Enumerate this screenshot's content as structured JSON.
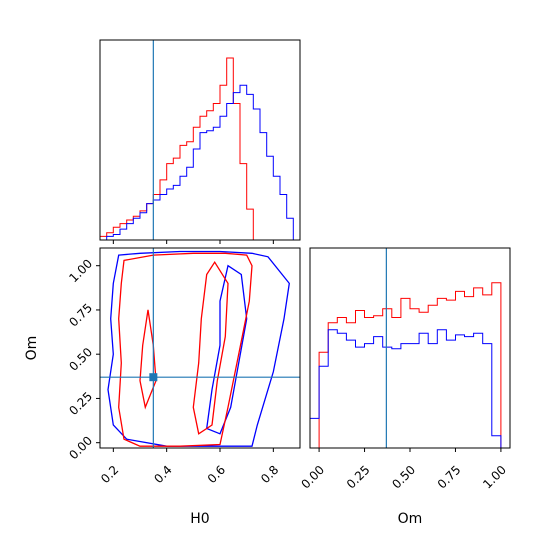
{
  "chart_data": {
    "type": "corner",
    "parameters": [
      "H0",
      "Om"
    ],
    "truth": {
      "H0": 0.35,
      "Om": 0.37
    },
    "colors": {
      "red": "#ff0000",
      "blue": "#0000ff",
      "truth": "#1f77b4"
    },
    "h0_hist": {
      "type": "histogram",
      "param": "H0",
      "xlim": [
        0.15,
        0.9
      ],
      "bin_edges": [
        0.15,
        0.175,
        0.2,
        0.225,
        0.25,
        0.275,
        0.3,
        0.325,
        0.35,
        0.375,
        0.4,
        0.425,
        0.45,
        0.475,
        0.5,
        0.525,
        0.55,
        0.575,
        0.6,
        0.625,
        0.65,
        0.675,
        0.7,
        0.725,
        0.75,
        0.775,
        0.8,
        0.825,
        0.85,
        0.875,
        0.9
      ],
      "series": [
        {
          "color": "red",
          "values": [
            0.02,
            0.04,
            0.07,
            0.09,
            0.11,
            0.13,
            0.16,
            0.2,
            0.25,
            0.33,
            0.42,
            0.45,
            0.52,
            0.54,
            0.62,
            0.68,
            0.71,
            0.75,
            0.85,
            1.0,
            0.75,
            0.42,
            0.17,
            0.0,
            0.0,
            0.0,
            0.0,
            0.0,
            0.0,
            0.0
          ]
        },
        {
          "color": "blue",
          "values": [
            0.0,
            0.02,
            0.03,
            0.06,
            0.09,
            0.12,
            0.15,
            0.2,
            0.22,
            0.25,
            0.28,
            0.3,
            0.35,
            0.4,
            0.5,
            0.59,
            0.6,
            0.62,
            0.68,
            0.75,
            0.81,
            0.85,
            0.8,
            0.72,
            0.59,
            0.46,
            0.35,
            0.25,
            0.12,
            0.0
          ]
        }
      ]
    },
    "om_hist": {
      "type": "histogram",
      "param": "Om",
      "xlim": [
        -0.05,
        1.05
      ],
      "xticks": [
        "0.00",
        "0.25",
        "0.50",
        "0.75",
        "1.00"
      ],
      "xtick_values": [
        0.0,
        0.25,
        0.5,
        0.75,
        1.0
      ],
      "xlabel": "Om",
      "bin_edges": [
        -0.05,
        0.0,
        0.05,
        0.1,
        0.15,
        0.2,
        0.25,
        0.3,
        0.35,
        0.4,
        0.45,
        0.5,
        0.55,
        0.6,
        0.65,
        0.7,
        0.75,
        0.8,
        0.85,
        0.9,
        0.95,
        1.0,
        1.05
      ],
      "series": [
        {
          "color": "red",
          "values": [
            0.0,
            0.55,
            0.72,
            0.75,
            0.72,
            0.79,
            0.75,
            0.76,
            0.8,
            0.75,
            0.86,
            0.8,
            0.78,
            0.82,
            0.86,
            0.85,
            0.9,
            0.87,
            0.92,
            0.88,
            0.95,
            0.0
          ]
        },
        {
          "color": "blue",
          "values": [
            0.17,
            0.47,
            0.68,
            0.66,
            0.62,
            0.58,
            0.6,
            0.64,
            0.58,
            0.57,
            0.6,
            0.6,
            0.66,
            0.6,
            0.68,
            0.62,
            0.65,
            0.64,
            0.66,
            0.6,
            0.07,
            0.0
          ]
        }
      ]
    },
    "joint": {
      "type": "contour",
      "x_param": "H0",
      "y_param": "Om",
      "xlim": [
        0.15,
        0.9
      ],
      "ylim": [
        -0.03,
        1.1
      ],
      "xticks": [
        "0.2",
        "0.4",
        "0.6",
        "0.8"
      ],
      "xtick_values": [
        0.2,
        0.4,
        0.6,
        0.8
      ],
      "yticks": [
        "0.00",
        "0.25",
        "0.50",
        "0.75",
        "1.00"
      ],
      "ytick_values": [
        0.0,
        0.25,
        0.5,
        0.75,
        1.0
      ],
      "xlabel": "H0",
      "ylabel": "Om",
      "contours": [
        {
          "color": "blue",
          "level": "outer",
          "points": [
            [
              0.22,
              1.06
            ],
            [
              0.3,
              1.07
            ],
            [
              0.45,
              1.08
            ],
            [
              0.6,
              1.08
            ],
            [
              0.72,
              1.07
            ],
            [
              0.78,
              1.05
            ],
            [
              0.86,
              0.9
            ],
            [
              0.84,
              0.7
            ],
            [
              0.8,
              0.4
            ],
            [
              0.74,
              0.1
            ],
            [
              0.72,
              -0.02
            ],
            [
              0.6,
              -0.02
            ],
            [
              0.4,
              -0.02
            ],
            [
              0.25,
              0.02
            ],
            [
              0.2,
              0.1
            ],
            [
              0.18,
              0.3
            ],
            [
              0.2,
              0.5
            ],
            [
              0.19,
              0.7
            ],
            [
              0.2,
              0.9
            ],
            [
              0.22,
              1.06
            ]
          ]
        },
        {
          "color": "blue",
          "level": "inner",
          "points": [
            [
              0.63,
              1.0
            ],
            [
              0.68,
              0.95
            ],
            [
              0.7,
              0.7
            ],
            [
              0.67,
              0.45
            ],
            [
              0.64,
              0.2
            ],
            [
              0.6,
              0.05
            ],
            [
              0.55,
              0.08
            ],
            [
              0.57,
              0.3
            ],
            [
              0.6,
              0.55
            ],
            [
              0.6,
              0.8
            ],
            [
              0.63,
              1.0
            ]
          ]
        },
        {
          "color": "red",
          "level": "outer",
          "points": [
            [
              0.24,
              1.03
            ],
            [
              0.35,
              1.06
            ],
            [
              0.5,
              1.07
            ],
            [
              0.62,
              1.07
            ],
            [
              0.7,
              1.06
            ],
            [
              0.72,
              1.0
            ],
            [
              0.71,
              0.8
            ],
            [
              0.67,
              0.5
            ],
            [
              0.63,
              0.2
            ],
            [
              0.6,
              -0.01
            ],
            [
              0.45,
              -0.02
            ],
            [
              0.3,
              -0.02
            ],
            [
              0.24,
              0.02
            ],
            [
              0.22,
              0.2
            ],
            [
              0.23,
              0.45
            ],
            [
              0.22,
              0.7
            ],
            [
              0.23,
              0.9
            ],
            [
              0.24,
              1.03
            ]
          ]
        },
        {
          "color": "red",
          "level": "inner",
          "points": [
            [
              0.58,
              1.02
            ],
            [
              0.63,
              0.9
            ],
            [
              0.62,
              0.6
            ],
            [
              0.59,
              0.35
            ],
            [
              0.57,
              0.1
            ],
            [
              0.52,
              0.05
            ],
            [
              0.5,
              0.2
            ],
            [
              0.52,
              0.45
            ],
            [
              0.53,
              0.7
            ],
            [
              0.55,
              0.95
            ],
            [
              0.58,
              1.02
            ]
          ]
        },
        {
          "color": "red",
          "level": "inner",
          "points": [
            [
              0.32,
              0.2
            ],
            [
              0.36,
              0.35
            ],
            [
              0.35,
              0.55
            ],
            [
              0.33,
              0.75
            ],
            [
              0.31,
              0.55
            ],
            [
              0.3,
              0.35
            ],
            [
              0.32,
              0.2
            ]
          ]
        }
      ]
    }
  }
}
